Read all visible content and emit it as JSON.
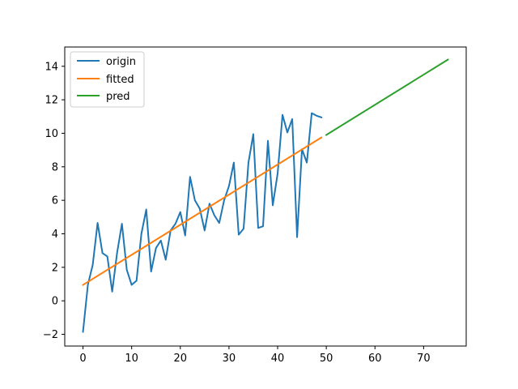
{
  "chart_data": {
    "type": "line",
    "title": "",
    "xlabel": "",
    "ylabel": "",
    "xlim": [
      -3.75,
      78.75
    ],
    "ylim": [
      -2.7,
      15.15
    ],
    "xticks": [
      0,
      10,
      20,
      30,
      40,
      50,
      60,
      70
    ],
    "yticks": [
      -2,
      0,
      2,
      4,
      6,
      8,
      10,
      12,
      14
    ],
    "grid": false,
    "legend_position": "top-left",
    "series": [
      {
        "name": "origin",
        "color": "#1f77b4",
        "x": [
          0,
          1,
          2,
          3,
          4,
          5,
          6,
          7,
          8,
          9,
          10,
          11,
          12,
          13,
          14,
          15,
          16,
          17,
          18,
          19,
          20,
          21,
          22,
          23,
          24,
          25,
          26,
          27,
          28,
          29,
          30,
          31,
          32,
          33,
          34,
          35,
          36,
          37,
          38,
          39,
          40,
          41,
          42,
          43,
          44,
          45,
          46,
          47,
          48,
          49
        ],
        "y": [
          -1.85,
          0.95,
          2.15,
          4.65,
          2.85,
          2.65,
          0.55,
          2.85,
          4.6,
          1.85,
          0.95,
          1.2,
          4.0,
          5.45,
          1.75,
          3.15,
          3.6,
          2.45,
          4.2,
          4.6,
          5.3,
          3.9,
          7.4,
          6.0,
          5.5,
          4.2,
          5.8,
          5.1,
          4.65,
          6.0,
          6.85,
          8.25,
          3.95,
          4.3,
          8.25,
          9.95,
          4.35,
          4.45,
          9.55,
          5.7,
          7.6,
          11.1,
          10.05,
          10.85,
          3.8,
          9.05,
          8.25,
          11.2,
          11.05,
          10.95
        ]
      },
      {
        "name": "fitted",
        "color": "#ff7f0e",
        "x": [
          0,
          49
        ],
        "y": [
          0.95,
          9.75
        ]
      },
      {
        "name": "pred",
        "color": "#2ca02c",
        "x": [
          50,
          75
        ],
        "y": [
          9.9,
          14.4
        ]
      }
    ]
  }
}
